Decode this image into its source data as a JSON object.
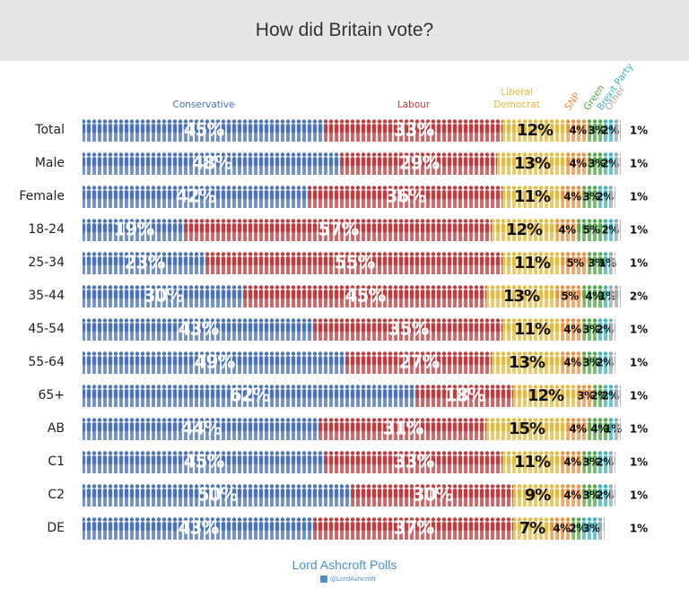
{
  "chart_data": {
    "type": "bar",
    "orientation": "horizontal",
    "stacked": true,
    "title": "How did Britain vote?",
    "footer": "Lord Ashcroft Polls",
    "handle": "@LordAshcroft",
    "categories": [
      "Total",
      "Male",
      "Female",
      "18-24",
      "25-34",
      "35-44",
      "45-54",
      "55-64",
      "65+",
      "AB",
      "C1",
      "C2",
      "DE"
    ],
    "series": [
      {
        "name": "Conservative",
        "color": "#4a72c0",
        "values": [
          45,
          48,
          42,
          19,
          23,
          30,
          43,
          49,
          62,
          44,
          45,
          50,
          43
        ],
        "value_labels": [
          "45%",
          "48%",
          "42%",
          "19%",
          "23%",
          "30%",
          "43%",
          "49%",
          "62%",
          "44%",
          "45%",
          "50%",
          "43%"
        ]
      },
      {
        "name": "Labour",
        "color": "#c9393b",
        "values": [
          33,
          29,
          36,
          57,
          55,
          45,
          35,
          27,
          18,
          31,
          33,
          30,
          37
        ],
        "value_labels": [
          "33%",
          "29%",
          "36%",
          "57%",
          "55%",
          "45%",
          "35%",
          "27%",
          "18%",
          "31%",
          "33%",
          "30%",
          "37%"
        ]
      },
      {
        "name": "Liberal Democrat",
        "color": "#e9b93a",
        "values": [
          12,
          13,
          11,
          12,
          11,
          13,
          11,
          13,
          12,
          15,
          11,
          9,
          7
        ],
        "value_labels": [
          "12%",
          "13%",
          "11%",
          "12%",
          "11%",
          "13%",
          "11%",
          "13%",
          "12%",
          "15%",
          "11%",
          "9%",
          "7%"
        ]
      },
      {
        "name": "SNP",
        "color": "#ef8f3f",
        "values": [
          4,
          4,
          4,
          4,
          5,
          5,
          4,
          4,
          3,
          4,
          4,
          4,
          4
        ],
        "value_labels": [
          "4%",
          "4%",
          "4%",
          "4%",
          "5%",
          "5%",
          "4%",
          "4%",
          "3%",
          "4%",
          "4%",
          "4%",
          "4%"
        ]
      },
      {
        "name": "Green",
        "color": "#4fa84a",
        "values": [
          3,
          3,
          3,
          5,
          3,
          4,
          3,
          3,
          2,
          4,
          3,
          3,
          2
        ],
        "value_labels": [
          "3%",
          "3%",
          "3%",
          "5%",
          "3%",
          "4%",
          "3%",
          "3%",
          "2%",
          "4%",
          "3%",
          "3%",
          "2%"
        ]
      },
      {
        "name": "Brexit Party",
        "color": "#3ab6c9",
        "values": [
          2,
          2,
          2,
          2,
          1,
          1,
          2,
          2,
          2,
          1,
          2,
          2,
          3
        ],
        "value_labels": [
          "2%",
          "2%",
          "2%",
          "2%",
          "1%",
          "1%",
          "2%",
          "2%",
          "2%",
          "1%",
          "2%",
          "2%",
          "3%"
        ]
      },
      {
        "name": "Other",
        "color": "#a8a8a8",
        "values": [
          1,
          1,
          1,
          1,
          1,
          2,
          1,
          1,
          1,
          1,
          1,
          1,
          1
        ],
        "value_labels": [
          "1%",
          "1%",
          "1%",
          "1%",
          "1%",
          "2%",
          "1%",
          "1%",
          "1%",
          "1%",
          "1%",
          "1%",
          "1%"
        ]
      }
    ]
  }
}
